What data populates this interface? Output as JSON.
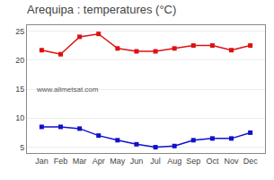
{
  "chart_data": {
    "type": "line",
    "title": "Arequipa : temperatures (°C)",
    "categories": [
      "Jan",
      "Feb",
      "Mar",
      "Apr",
      "May",
      "Jun",
      "Jul",
      "Aug",
      "Sep",
      "Oct",
      "Nov",
      "Dec"
    ],
    "series": [
      {
        "color": "#dd1111",
        "values": [
          21.7,
          21.0,
          24.0,
          24.5,
          22.0,
          21.5,
          21.5,
          22.0,
          22.5,
          22.5,
          21.7,
          22.5
        ]
      },
      {
        "color": "#1111cc",
        "values": [
          8.5,
          8.5,
          8.2,
          7.0,
          6.2,
          5.5,
          5.0,
          5.2,
          6.2,
          6.5,
          6.5,
          7.5
        ]
      }
    ],
    "ylim": [
      4,
      26
    ],
    "yticks": [
      5,
      10,
      15,
      20,
      25
    ],
    "grid": "y",
    "marker": "square",
    "line_style": "solid",
    "annotations": [
      "www.allmetsat.com"
    ]
  }
}
